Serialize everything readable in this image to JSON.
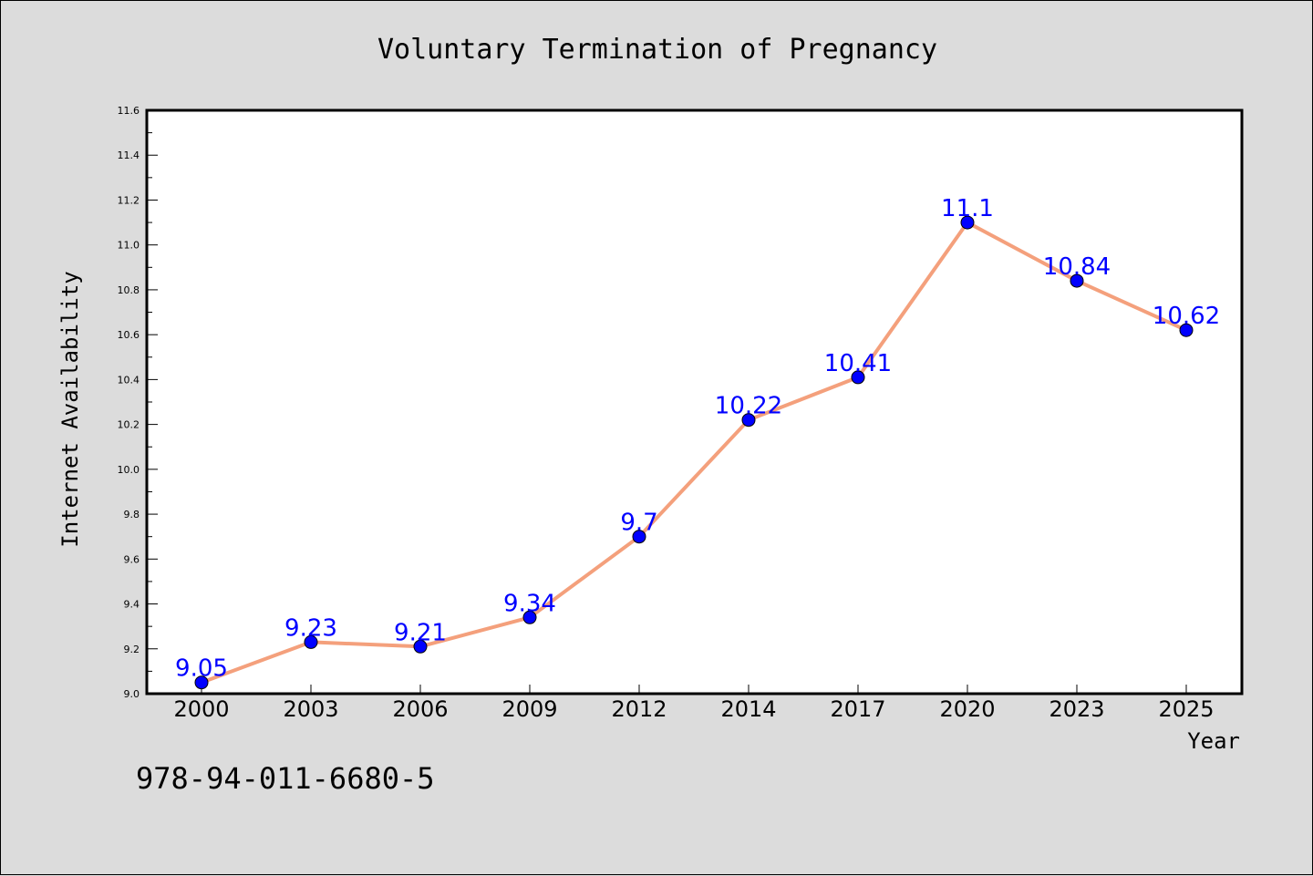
{
  "chart_data": {
    "type": "line",
    "title": "Voluntary Termination of Pregnancy",
    "xlabel": "Year",
    "ylabel": "Internet Availability",
    "categories": [
      "2000",
      "2003",
      "2006",
      "2009",
      "2012",
      "2014",
      "2017",
      "2020",
      "2023",
      "2025"
    ],
    "series": [
      {
        "values": [
          9.05,
          9.23,
          9.21,
          9.34,
          9.7,
          10.22,
          10.41,
          11.1,
          10.84,
          10.62
        ],
        "data_labels": [
          "9.05",
          "9.23",
          "9.21",
          "9.34",
          "9.7",
          "10.22",
          "10.41",
          "11.1",
          "10.84",
          "10.62"
        ],
        "line_color": "#f4a07c",
        "marker_color": "#0000ff"
      }
    ],
    "ylim": [
      9.0,
      11.6
    ],
    "yticks": [
      "9.0",
      "9.2",
      "9.4",
      "9.6",
      "9.8",
      "10.0",
      "10.2",
      "10.4",
      "10.6",
      "10.8",
      "11.0",
      "11.2",
      "11.4",
      "11.6"
    ],
    "grid": false,
    "legend": "none",
    "label_color": "#0000ff"
  },
  "footer": {
    "isbn": "978-94-011-6680-5"
  }
}
